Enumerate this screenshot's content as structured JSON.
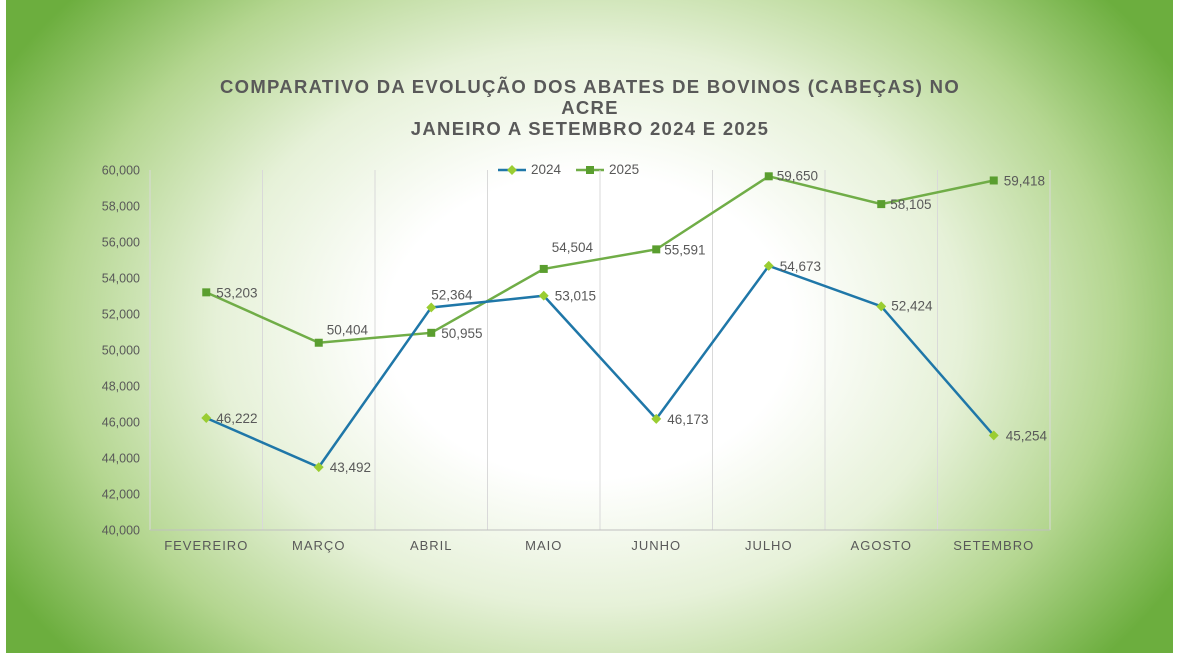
{
  "title": {
    "line1": "COMPARATIVO DA EVOLUÇÃO DOS ABATES DE BOVINOS (CABEÇAS) NO",
    "line2": "ACRE",
    "line3": "JANEIRO A SETEMBRO 2024 E 2025"
  },
  "colors": {
    "series_2024": "#1f77a8",
    "series_2024_marker": "#9acd32",
    "series_2025": "#70ad47",
    "series_2025_marker": "#5a9e2f",
    "text": "#595959",
    "grid": "#d9d9d9"
  },
  "chart_data": {
    "type": "line",
    "title": "COMPARATIVO DA EVOLUÇÃO DOS ABATES DE BOVINOS (CABEÇAS) NO ACRE JANEIRO A SETEMBRO 2024 E 2025",
    "categories": [
      "FEVEREIRO",
      "MARÇO",
      "ABRIL",
      "MAIO",
      "JUNHO",
      "JULHO",
      "AGOSTO",
      "SETEMBRO"
    ],
    "series": [
      {
        "name": "2024",
        "values": [
          46222,
          43492,
          52364,
          53015,
          46173,
          54673,
          52424,
          45254
        ],
        "labels": [
          "46,222",
          "43,492",
          "52,364",
          "53,015",
          "46,173",
          "54,673",
          "52,424",
          "45,254"
        ]
      },
      {
        "name": "2025",
        "values": [
          53203,
          50404,
          50955,
          54504,
          55591,
          59650,
          58105,
          59418
        ],
        "labels": [
          "53,203",
          "50,404",
          "50,955",
          "54,504",
          "55,591",
          "59,650",
          "58,105",
          "59,418"
        ]
      }
    ],
    "ylim": [
      40000,
      60000
    ],
    "yticks": [
      40000,
      42000,
      44000,
      46000,
      48000,
      50000,
      52000,
      54000,
      56000,
      58000,
      60000
    ],
    "ytick_labels": [
      "40,000",
      "42,000",
      "44,000",
      "46,000",
      "48,000",
      "50,000",
      "52,000",
      "54,000",
      "56,000",
      "58,000",
      "60,000"
    ],
    "grid": "vertical",
    "legend_position": "top"
  }
}
